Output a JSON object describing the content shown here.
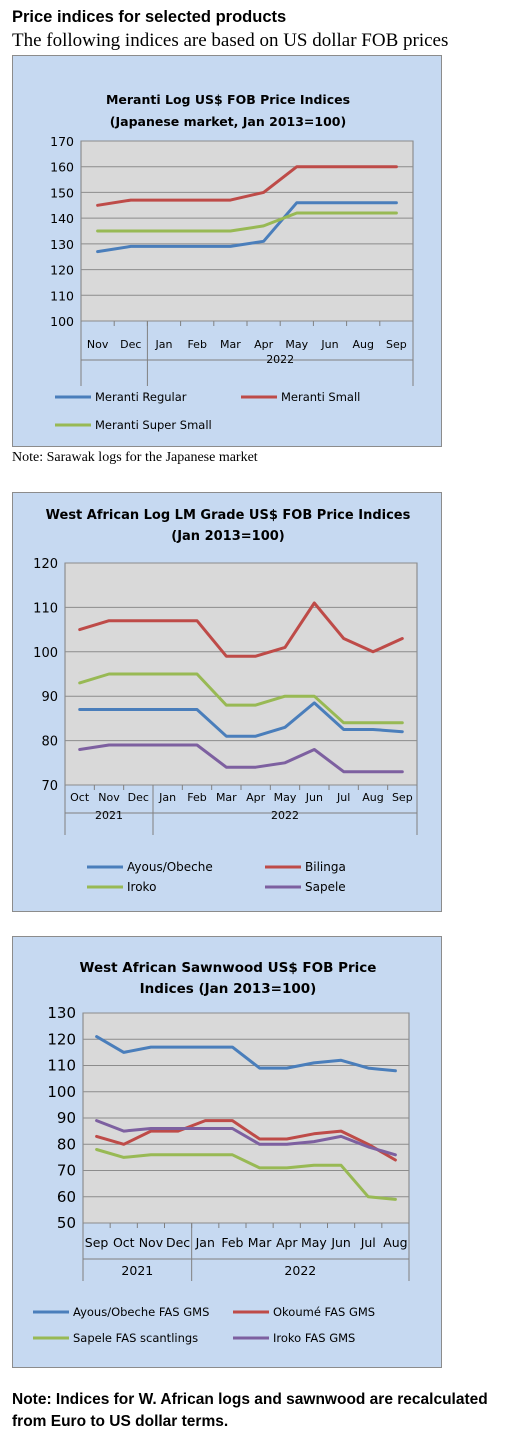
{
  "page": {
    "title": "Price indices for selected products",
    "subtitle": "The following indices are based on US dollar FOB prices",
    "note1": "Note: Sarawak logs for the Japanese market",
    "final_note": "Note: Indices for W. African logs and sawnwood are recalculated from Euro to US dollar terms."
  },
  "chart_data": [
    {
      "type": "line",
      "title": "Meranti Log US$ FOB Price Indices",
      "subtitle": "(Japanese market, Jan 2013=100)",
      "categories": [
        "Nov",
        "Dec",
        "Jan",
        "Feb",
        "Mar",
        "Apr",
        "May",
        "Jun",
        "Aug",
        "Sep"
      ],
      "groups": [
        {
          "label": "",
          "from": 0,
          "to": 1
        },
        {
          "label": "2022",
          "from": 2,
          "to": 9
        }
      ],
      "ylim": [
        100,
        170
      ],
      "yticks": [
        100,
        110,
        120,
        130,
        140,
        150,
        160,
        170
      ],
      "grid": true,
      "legend_position": "bottom",
      "series": [
        {
          "name": "Meranti Regular",
          "color": "#4a7ebb",
          "values": [
            127,
            129,
            129,
            129,
            129,
            131,
            146,
            146,
            146,
            146
          ]
        },
        {
          "name": "Meranti Small",
          "color": "#be4b48",
          "values": [
            145,
            147,
            147,
            147,
            147,
            150,
            160,
            160,
            160,
            160
          ]
        },
        {
          "name": "Meranti Super Small",
          "color": "#98b954",
          "values": [
            135,
            135,
            135,
            135,
            135,
            137,
            142,
            142,
            142,
            142
          ]
        }
      ]
    },
    {
      "type": "line",
      "title": "West African Log LM Grade US$ FOB Price Indices",
      "subtitle": "(Jan 2013=100)",
      "categories": [
        "Oct",
        "Nov",
        "Dec",
        "Jan",
        "Feb",
        "Mar",
        "Apr",
        "May",
        "Jun",
        "Jul",
        "Aug",
        "Sep"
      ],
      "groups": [
        {
          "label": "2021",
          "from": 0,
          "to": 2
        },
        {
          "label": "2022",
          "from": 3,
          "to": 11
        }
      ],
      "ylim": [
        70,
        120
      ],
      "yticks": [
        70,
        80,
        90,
        100,
        110,
        120
      ],
      "grid": true,
      "legend_position": "bottom",
      "series": [
        {
          "name": "Ayous/Obeche",
          "color": "#4a7ebb",
          "values": [
            87,
            87,
            87,
            87,
            87,
            81,
            81,
            83,
            88.5,
            82.5,
            82.5,
            82
          ]
        },
        {
          "name": "Bilinga",
          "color": "#be4b48",
          "values": [
            105,
            107,
            107,
            107,
            107,
            99,
            99,
            101,
            111,
            103,
            100,
            103
          ]
        },
        {
          "name": "Iroko",
          "color": "#98b954",
          "values": [
            93,
            95,
            95,
            95,
            95,
            88,
            88,
            90,
            90,
            84,
            84,
            84
          ]
        },
        {
          "name": "Sapele",
          "color": "#7d60a0",
          "values": [
            78,
            79,
            79,
            79,
            79,
            74,
            74,
            75,
            78,
            73,
            73,
            73
          ]
        }
      ]
    },
    {
      "type": "line",
      "title": "West African Sawnwood US$ FOB Price",
      "subtitle": "Indices (Jan 2013=100)",
      "categories": [
        "Sep",
        "Oct",
        "Nov",
        "Dec",
        "Jan",
        "Feb",
        "Mar",
        "Apr",
        "May",
        "Jun",
        "Jul",
        "Aug"
      ],
      "groups": [
        {
          "label": "2021",
          "from": 0,
          "to": 3
        },
        {
          "label": "2022",
          "from": 4,
          "to": 11
        }
      ],
      "ylim": [
        50,
        130
      ],
      "yticks": [
        50,
        60,
        70,
        80,
        90,
        100,
        110,
        120,
        130
      ],
      "grid": true,
      "legend_position": "bottom",
      "series": [
        {
          "name": "Ayous/Obeche FAS GMS",
          "color": "#4a7ebb",
          "values": [
            121,
            115,
            117,
            117,
            117,
            117,
            109,
            109,
            111,
            112,
            109,
            108
          ]
        },
        {
          "name": "Okoumé FAS GMS",
          "color": "#be4b48",
          "values": [
            83,
            80,
            85,
            85,
            89,
            89,
            82,
            82,
            84,
            85,
            80,
            74
          ]
        },
        {
          "name": "Sapele FAS scantlings",
          "color": "#98b954",
          "values": [
            78,
            75,
            76,
            76,
            76,
            76,
            71,
            71,
            72,
            72,
            60,
            59
          ]
        },
        {
          "name": "Iroko FAS GMS",
          "color": "#7d60a0",
          "values": [
            89,
            85,
            86,
            86,
            86,
            86,
            80,
            80,
            81,
            83,
            79,
            76
          ]
        }
      ]
    }
  ]
}
